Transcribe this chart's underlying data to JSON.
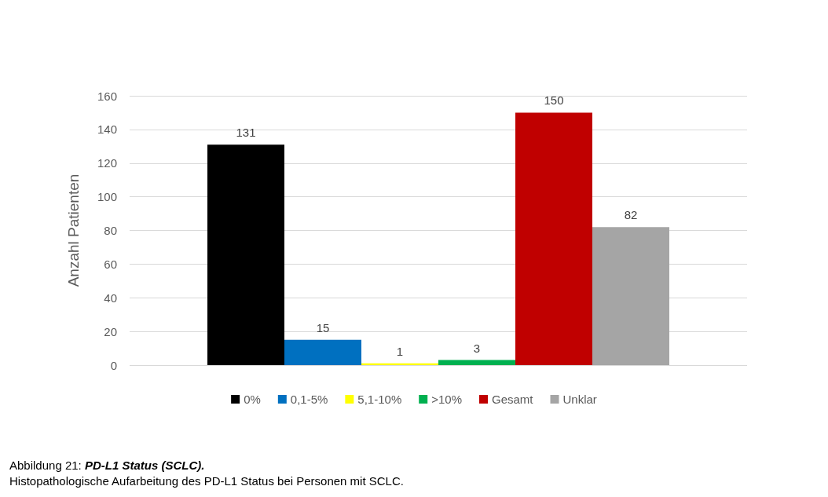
{
  "chart_data": {
    "type": "bar",
    "title": "PD-L1 Status (SCLC).",
    "ylabel": "Anzahl Patienten",
    "annotations": [
      "Abbildung 21:",
      "Histopathologische Aufarbeitung des PD-L1 Status bei Personen mit SCLC."
    ],
    "categories": [
      null
    ],
    "series": [
      {
        "name": "0%",
        "color": "#000000",
        "values": [
          131
        ]
      },
      {
        "name": "0,1-5%",
        "color": "#0070c0",
        "values": [
          15
        ]
      },
      {
        "name": "5,1-10%",
        "color": "#ffff00",
        "values": [
          1
        ]
      },
      {
        "name": ">10%",
        "color": "#00b050",
        "values": [
          3
        ]
      },
      {
        "name": "Gesamt",
        "color": "#c00000",
        "values": [
          150
        ]
      },
      {
        "name": "Unklar",
        "color": "#a5a5a5",
        "values": [
          82
        ]
      }
    ],
    "ylim": [
      0,
      160
    ],
    "yticks": [
      0,
      20,
      40,
      60,
      80,
      100,
      120,
      140,
      160
    ],
    "grid": "y",
    "legend": "bottom",
    "data_labels": true,
    "tick_labels": "y"
  }
}
